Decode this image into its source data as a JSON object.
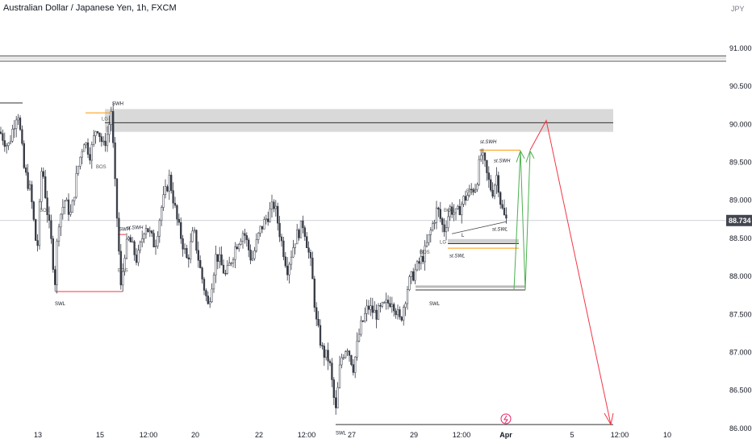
{
  "chart_title": "Australian Dollar / Japanese Yen, 1h, FXCM",
  "currency": "JPY",
  "chart_data": {
    "type": "candlestick",
    "ylim": [
      85.85,
      91.55
    ],
    "yticks": [
      86.0,
      86.5,
      87.0,
      87.5,
      88.0,
      88.5,
      89.0,
      89.5,
      90.0,
      90.5,
      91.0
    ],
    "ytick_labels": [
      "86.000",
      "86.500",
      "87.000",
      "87.500",
      "88.000",
      "88.500",
      "89.000",
      "89.500",
      "90.000",
      "90.500",
      "91.000"
    ],
    "x_labels": [
      "13",
      "15",
      "12:00",
      "20",
      "22",
      "12:00",
      "27",
      "29",
      "12:00",
      "Apr",
      "5",
      "12:00",
      "10"
    ],
    "current_price": 88.734,
    "current_price_label": "88.734",
    "price_path": [
      [
        0,
        89.9
      ],
      [
        10,
        89.7
      ],
      [
        22,
        90.2
      ],
      [
        30,
        89.4
      ],
      [
        38,
        89.1
      ],
      [
        46,
        88.3
      ],
      [
        52,
        89.5
      ],
      [
        58,
        88.9
      ],
      [
        64,
        88.4
      ],
      [
        68,
        87.9
      ],
      [
        72,
        88.7
      ],
      [
        80,
        89.0
      ],
      [
        88,
        88.8
      ],
      [
        96,
        89.4
      ],
      [
        104,
        89.8
      ],
      [
        112,
        89.6
      ],
      [
        120,
        90.0
      ],
      [
        128,
        89.7
      ],
      [
        134,
        89.9
      ],
      [
        138,
        90.2
      ],
      [
        142,
        89.3
      ],
      [
        146,
        88.6
      ],
      [
        150,
        87.8
      ],
      [
        154,
        88.3
      ],
      [
        160,
        88.5
      ],
      [
        170,
        88.2
      ],
      [
        180,
        88.7
      ],
      [
        192,
        88.4
      ],
      [
        200,
        88.9
      ],
      [
        210,
        89.3
      ],
      [
        220,
        88.7
      ],
      [
        232,
        88.2
      ],
      [
        240,
        88.6
      ],
      [
        248,
        88.1
      ],
      [
        258,
        87.6
      ],
      [
        268,
        88.3
      ],
      [
        280,
        88.0
      ],
      [
        292,
        88.4
      ],
      [
        302,
        88.6
      ],
      [
        312,
        88.2
      ],
      [
        322,
        88.6
      ],
      [
        332,
        88.8
      ],
      [
        340,
        88.95
      ],
      [
        348,
        88.5
      ],
      [
        356,
        88.1
      ],
      [
        366,
        88.5
      ],
      [
        376,
        88.7
      ],
      [
        386,
        88.1
      ],
      [
        392,
        87.4
      ],
      [
        400,
        87.0
      ],
      [
        408,
        86.9
      ],
      [
        416,
        86.2
      ],
      [
        422,
        86.9
      ],
      [
        430,
        87.1
      ],
      [
        438,
        86.8
      ],
      [
        446,
        87.3
      ],
      [
        456,
        87.6
      ],
      [
        466,
        87.5
      ],
      [
        476,
        87.6
      ],
      [
        486,
        87.7
      ],
      [
        496,
        87.4
      ],
      [
        506,
        87.9
      ],
      [
        516,
        88.1
      ],
      [
        526,
        88.3
      ],
      [
        534,
        88.6
      ],
      [
        542,
        88.9
      ],
      [
        550,
        88.6
      ],
      [
        558,
        88.9
      ],
      [
        566,
        88.8
      ],
      [
        574,
        89.0
      ],
      [
        582,
        89.1
      ],
      [
        590,
        89.2
      ],
      [
        596,
        89.6
      ],
      [
        600,
        89.5
      ],
      [
        604,
        89.3
      ],
      [
        610,
        89.1
      ],
      [
        616,
        89.35
      ],
      [
        620,
        89.0
      ],
      [
        624,
        88.8
      ],
      [
        628,
        88.73
      ]
    ],
    "zones": [
      {
        "label": "supply-zone",
        "y1": 89.9,
        "y2": 90.2,
        "color": "#d9d9d9"
      },
      {
        "label": "top-band",
        "y1": 90.84,
        "y2": 90.88,
        "color": "#9e9e9e"
      }
    ],
    "levels": [
      {
        "name": "resistance-line",
        "value": 90.02
      },
      {
        "name": "top-line-1",
        "value": 90.9
      },
      {
        "name": "top-line-2",
        "value": 90.83
      },
      {
        "name": "swl-low",
        "value": 86.05
      }
    ],
    "annotations": {
      "swh": "SWH",
      "lg": "LG",
      "bos": "BOS",
      "swl": "SWL",
      "st_swh": "st.SWH",
      "st_swl": "st.SWL",
      "l": "L"
    },
    "projection": {
      "green": [
        88.5,
        89.65
      ],
      "red": [
        90.0,
        86.05
      ]
    }
  },
  "colors": {
    "candle": "#363a45",
    "red_line": "#f23645",
    "orange_line": "#ff9800",
    "green_line": "#4caf50",
    "price_label_bg": "#434651"
  }
}
